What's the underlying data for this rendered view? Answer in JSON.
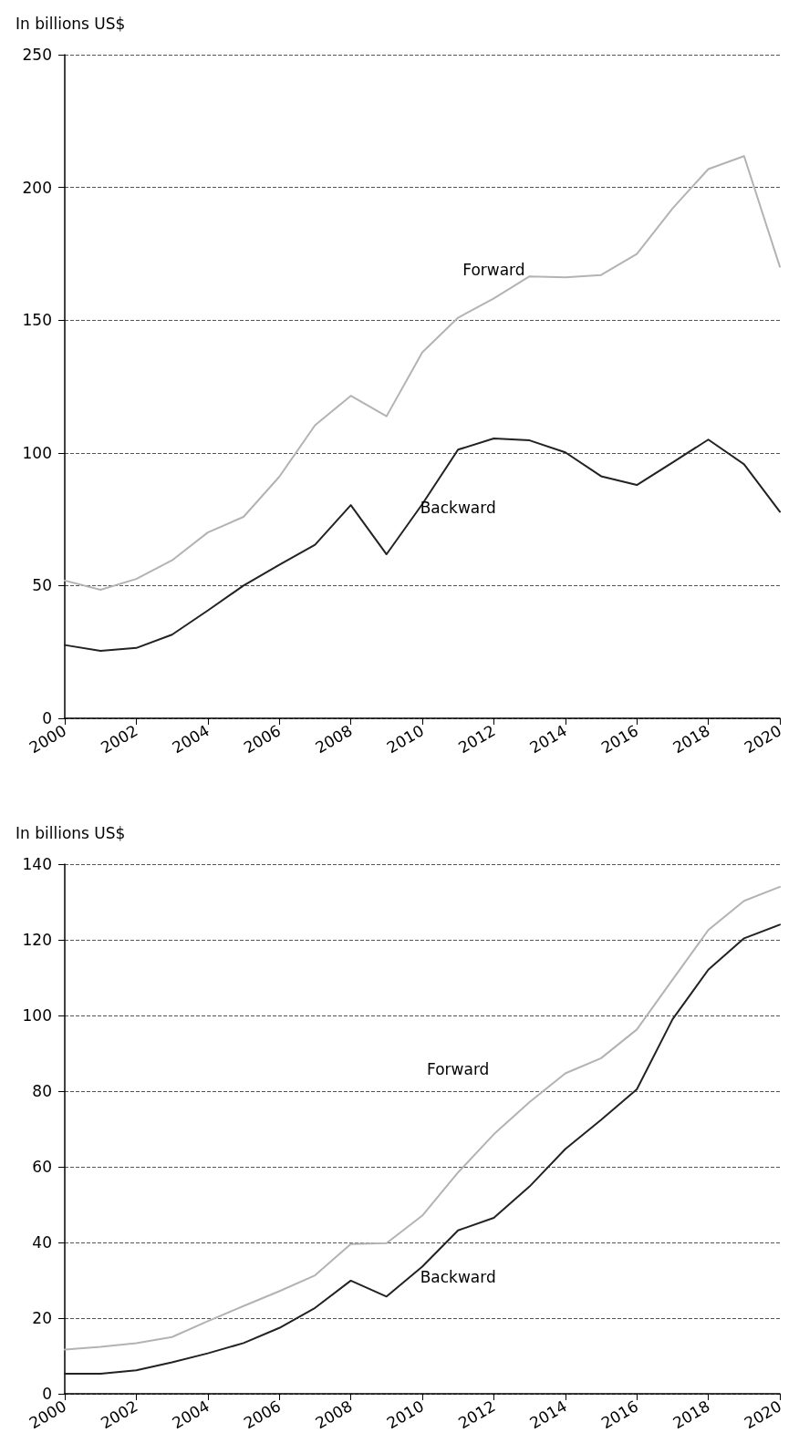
{
  "chart_data": [
    {
      "type": "line",
      "ylabel": "In billions US$",
      "x": [
        2000,
        2001,
        2002,
        2003,
        2004,
        2005,
        2006,
        2007,
        2008,
        2009,
        2010,
        2011,
        2012,
        2013,
        2014,
        2015,
        2016,
        2017,
        2018,
        2019,
        2020
      ],
      "series": [
        {
          "name": "Forward",
          "color": "#b3b3b3",
          "values": [
            51.9,
            48.4,
            52.5,
            59.5,
            70,
            75.9,
            91,
            110.4,
            121.5,
            113.8,
            137.9,
            150.9,
            158.2,
            166.5,
            166.1,
            167,
            174.9,
            192.1,
            206.9,
            211.8,
            170.1
          ]
        },
        {
          "name": "Backward",
          "color": "#222222",
          "values": [
            27.6,
            25.4,
            26.5,
            31.5,
            40.6,
            50,
            57.8,
            65.4,
            80.3,
            61.8,
            80.7,
            101.2,
            105.4,
            104.7,
            100.2,
            91.2,
            87.9,
            96.4,
            105,
            95.7,
            77.8
          ]
        }
      ],
      "xlim": [
        2000,
        2020
      ],
      "xticks": [
        2000,
        2002,
        2004,
        2006,
        2008,
        2010,
        2012,
        2014,
        2016,
        2018,
        2020
      ],
      "ylim": [
        0,
        250
      ],
      "yticks": [
        0,
        50,
        100,
        150,
        200,
        250
      ],
      "grid": "y",
      "legend": false,
      "marker": "none",
      "line_style": "solid"
    },
    {
      "type": "line",
      "ylabel": "In billions US$",
      "x": [
        2000,
        2001,
        2002,
        2003,
        2004,
        2005,
        2006,
        2007,
        2008,
        2009,
        2010,
        2011,
        2012,
        2013,
        2014,
        2015,
        2016,
        2017,
        2018,
        2019,
        2020
      ],
      "series": [
        {
          "name": "Forward",
          "color": "#b3b3b3",
          "values": [
            11.7,
            12.4,
            13.4,
            15,
            19.2,
            23.2,
            27.1,
            31.3,
            39.6,
            39.8,
            47.1,
            58.5,
            68.6,
            77.1,
            84.7,
            88.7,
            96.3,
            109.5,
            122.6,
            130.3,
            134
          ]
        },
        {
          "name": "Backward",
          "color": "#222222",
          "values": [
            5.3,
            5.3,
            6.2,
            8.3,
            10.7,
            13.4,
            17.4,
            22.7,
            29.9,
            25.7,
            33.6,
            43.2,
            46.5,
            54.8,
            64.7,
            72.4,
            80.5,
            99,
            112.1,
            120.4,
            124
          ]
        }
      ],
      "xlim": [
        2000,
        2020
      ],
      "xticks": [
        2000,
        2002,
        2004,
        2006,
        2008,
        2010,
        2012,
        2014,
        2016,
        2018,
        2020
      ],
      "ylim": [
        0,
        140
      ],
      "yticks": [
        0,
        20,
        40,
        60,
        80,
        100,
        120,
        140
      ],
      "grid": "y",
      "legend": false,
      "marker": "none",
      "line_style": "solid"
    }
  ]
}
